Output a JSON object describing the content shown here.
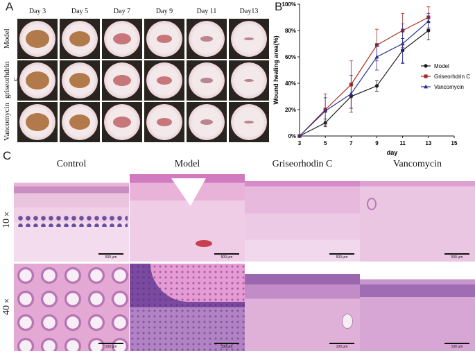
{
  "panels": {
    "a": "A",
    "b": "B",
    "c": "C"
  },
  "panel_a": {
    "days": [
      "Day 3",
      "Day 5",
      "Day 7",
      "Day 9",
      "Day 11",
      "Day13"
    ],
    "groups": [
      "Model",
      "griseorhdrin c",
      "Vancomycin"
    ]
  },
  "chart_data": {
    "type": "line",
    "xlabel": "day",
    "ylabel": "Wound healing area(%)",
    "xlim": [
      3,
      15
    ],
    "xticks": [
      3,
      5,
      7,
      9,
      11,
      13,
      15
    ],
    "ylim": [
      0,
      100
    ],
    "yticks": [
      "0%",
      "20%",
      "40%",
      "60%",
      "80%",
      "100%"
    ],
    "legend": "right",
    "x": [
      3,
      5,
      7,
      9,
      11,
      13
    ],
    "series": [
      {
        "name": "Model",
        "color": "#1a1a1a",
        "marker": "circle",
        "values": [
          0,
          10,
          30,
          38,
          65,
          80
        ],
        "err": [
          0,
          3,
          9,
          4,
          9,
          7
        ]
      },
      {
        "name": "Griseorhdrin C",
        "color": "#a52a1f",
        "marker": "square",
        "values": [
          0,
          20,
          39,
          69,
          80,
          90
        ],
        "err": [
          0,
          12,
          18,
          12,
          13,
          8
        ]
      },
      {
        "name": "Vancomycin",
        "color": "#27308f",
        "marker": "triangle",
        "values": [
          0,
          19,
          32,
          60,
          70,
          87
        ],
        "err": [
          0,
          10,
          14,
          10,
          15,
          6
        ]
      }
    ]
  },
  "panel_c": {
    "columns": [
      "Control",
      "Model",
      "Griseorhodin C",
      "Vancomycin"
    ],
    "magnifications": [
      "10×",
      "40×"
    ],
    "scale_labels": [
      "500 μm",
      "500 μm",
      "500 μm",
      "500 μm",
      "100 μm",
      "100 μm",
      "100 μm",
      "100 μm"
    ]
  }
}
